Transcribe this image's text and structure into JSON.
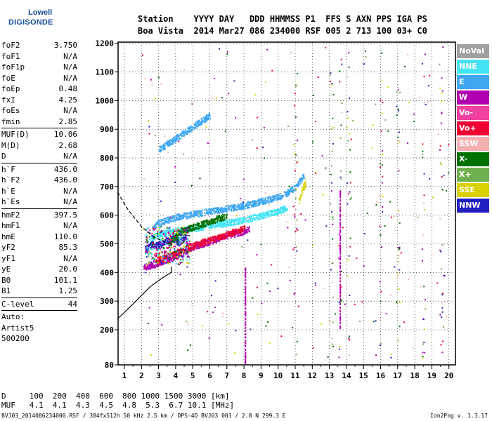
{
  "logo": {
    "line1": "Lowell",
    "line2": "DIGISONDE"
  },
  "header": {
    "row1": "Station    YYYY DAY   DDD HHMMSS P1  FFS S AXN PPS IGA PS",
    "row2": "Boa Vista  2014 Mar27 086 234000 RSF 005 2 713 100 03+ C0"
  },
  "params": [
    {
      "k": "foF2",
      "v": "3.750"
    },
    {
      "k": "foF1",
      "v": "N/A"
    },
    {
      "k": "foF1p",
      "v": "N/A"
    },
    {
      "k": "foE",
      "v": "N/A"
    },
    {
      "k": "foEp",
      "v": "0.48"
    },
    {
      "k": "fxI",
      "v": "4.25"
    },
    {
      "k": "foEs",
      "v": "N/A"
    },
    {
      "k": "fmin",
      "v": "2.85"
    },
    {
      "k": "---"
    },
    {
      "k": "MUF(D)",
      "v": "10.06"
    },
    {
      "k": "M(D)",
      "v": "2.68"
    },
    {
      "k": "D",
      "v": "N/A"
    },
    {
      "k": "---"
    },
    {
      "k": "h`F",
      "v": "436.0"
    },
    {
      "k": "h`F2",
      "v": "436.0"
    },
    {
      "k": "h`E",
      "v": "N/A"
    },
    {
      "k": "h`Es",
      "v": "N/A"
    },
    {
      "k": "---"
    },
    {
      "k": "hmF2",
      "v": "397.5"
    },
    {
      "k": "hmF1",
      "v": "N/A"
    },
    {
      "k": "hmE",
      "v": "110.0"
    },
    {
      "k": "yF2",
      "v": "85.3"
    },
    {
      "k": "yF1",
      "v": "N/A"
    },
    {
      "k": "yE",
      "v": "20.0"
    },
    {
      "k": "B0",
      "v": "101.1"
    },
    {
      "k": "B1",
      "v": "1.25"
    },
    {
      "k": "---"
    },
    {
      "k": "C-level",
      "v": "44"
    },
    {
      "k": "---"
    },
    {
      "k": "Auto:",
      "v": ""
    },
    {
      "k": "Artist5",
      "v": ""
    },
    {
      "k": "500200",
      "v": ""
    }
  ],
  "legend": [
    {
      "label": "NoVal",
      "color": "#a0a0a0"
    },
    {
      "label": "NNE",
      "color": "#44e4f4"
    },
    {
      "label": "E",
      "color": "#3fa7f2"
    },
    {
      "label": "W",
      "color": "#b000b0"
    },
    {
      "label": "Vo-",
      "color": "#f040a0"
    },
    {
      "label": "Vo+",
      "color": "#ee0033"
    },
    {
      "label": "SSW",
      "color": "#f4b0b0"
    },
    {
      "label": "X-",
      "color": "#007000"
    },
    {
      "label": "X+",
      "color": "#70b050"
    },
    {
      "label": "SSE",
      "color": "#d8d000"
    },
    {
      "label": "NNW",
      "color": "#2020c0"
    }
  ],
  "footer": {
    "row1": "D     100  200  400  600  800 1000 1500 3000 [km]",
    "row2": "MUF   4.1  4.1  4.3  4.5  4.8  5.3  6.7 10.1 [MHz]"
  },
  "bottom_line": "BVJ03_2014086234000.RSF / 384fx512h 50 kHz 2.5 km / DPS-4D BVJ03 003 / 2.8 N 299.3 E",
  "version": "Ion2Png v. 1.3.17",
  "chart_data": {
    "type": "scatter",
    "x_ticks": [
      1,
      2,
      3,
      4,
      5,
      6,
      7,
      8,
      9,
      10,
      11,
      12,
      13,
      14,
      15,
      16,
      17,
      18,
      19,
      20
    ],
    "y_ticks": [
      80,
      200,
      300,
      400,
      500,
      600,
      700,
      800,
      900,
      1000,
      1100,
      1200
    ],
    "xlim": [
      0.75,
      20.5
    ],
    "ylim": [
      80,
      1200
    ],
    "grid": true,
    "y_axis_break": "80 to 200",
    "traces": [
      {
        "color": "#3fa7f2",
        "points": [
          [
            2.6,
            560
          ],
          [
            3,
            575
          ],
          [
            3.5,
            585
          ],
          [
            4,
            595
          ],
          [
            5,
            605
          ],
          [
            6,
            615
          ],
          [
            7,
            625
          ],
          [
            8,
            635
          ],
          [
            9,
            650
          ],
          [
            10,
            665
          ],
          [
            10.5,
            680
          ],
          [
            11,
            700
          ],
          [
            11.5,
            740
          ]
        ]
      },
      {
        "color": "#44e4f4",
        "points": [
          [
            2.5,
            520
          ],
          [
            3,
            535
          ],
          [
            4,
            545
          ],
          [
            5,
            555
          ],
          [
            6,
            565
          ],
          [
            7,
            575
          ],
          [
            8,
            585
          ],
          [
            9,
            600
          ],
          [
            10,
            615
          ],
          [
            10.5,
            630
          ]
        ]
      },
      {
        "color": "#b000b0",
        "points": [
          [
            2.1,
            420
          ],
          [
            2.5,
            425
          ],
          [
            3,
            435
          ],
          [
            3.5,
            445
          ],
          [
            4,
            460
          ],
          [
            4.5,
            475
          ],
          [
            5,
            490
          ],
          [
            6,
            510
          ],
          [
            7,
            530
          ],
          [
            8,
            545
          ],
          [
            8.3,
            555
          ]
        ]
      },
      {
        "color": "#ee0033",
        "points": [
          [
            2.8,
            440
          ],
          [
            3.2,
            450
          ],
          [
            4,
            470
          ],
          [
            5,
            495
          ],
          [
            6,
            515
          ],
          [
            7,
            535
          ],
          [
            8,
            555
          ]
        ]
      },
      {
        "color": "#2020c0",
        "points": [
          [
            2.2,
            480
          ],
          [
            2.6,
            500
          ],
          [
            3,
            495
          ],
          [
            3.4,
            510
          ],
          [
            3.8,
            520
          ],
          [
            4.2,
            505
          ],
          [
            4.6,
            530
          ]
        ]
      },
      {
        "color": "#3fa7f2",
        "points": [
          [
            3,
            830
          ],
          [
            3.5,
            850
          ],
          [
            4,
            870
          ],
          [
            4.5,
            890
          ],
          [
            5,
            910
          ],
          [
            5.5,
            930
          ],
          [
            6,
            950
          ]
        ]
      },
      {
        "color": "#007000",
        "points": [
          [
            3.6,
            500
          ],
          [
            4.2,
            540
          ],
          [
            5,
            560
          ],
          [
            6,
            580
          ],
          [
            7,
            600
          ]
        ]
      },
      {
        "color": "#d8d000",
        "points": [
          [
            11.2,
            650
          ],
          [
            11.4,
            690
          ],
          [
            11.6,
            720
          ]
        ]
      }
    ],
    "profile_solid": [
      [
        0.6,
        238
      ],
      [
        1.5,
        290
      ],
      [
        2.5,
        350
      ],
      [
        3.2,
        380
      ],
      [
        3.6,
        395
      ],
      [
        3.75,
        400
      ],
      [
        3.75,
        420
      ]
    ],
    "profile_dashed": [
      [
        0.6,
        680
      ],
      [
        1.2,
        620
      ],
      [
        2,
        560
      ],
      [
        2.8,
        520
      ],
      [
        3.75,
        500
      ]
    ],
    "vertical_streaks": [
      {
        "x": 8.05,
        "y0": 90,
        "y1": 420,
        "color": "#b000b0"
      },
      {
        "x": 13.6,
        "y0": 210,
        "y1": 690,
        "color": "#b000b0"
      }
    ]
  }
}
